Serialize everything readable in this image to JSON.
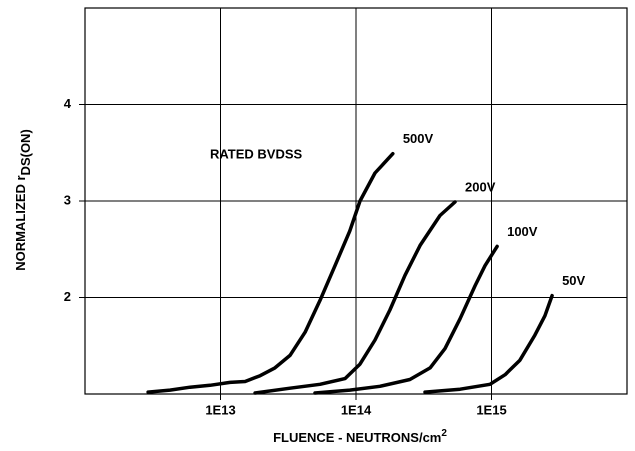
{
  "chart_data": {
    "type": "line",
    "x_label": [
      "FLUENCE - NEUTRONS/cm",
      "2"
    ],
    "y_label": [
      "NORMALIZED r",
      "DS(ON)"
    ],
    "annotation": "RATED BVDSS",
    "xscale": "log",
    "xlim": [
      1000000000000.0,
      1e+16
    ],
    "xticks": [
      {
        "value": 10000000000000.0,
        "label": "1E13"
      },
      {
        "value": 100000000000000.0,
        "label": "1E14"
      },
      {
        "value": 1000000000000000.0,
        "label": "1E15"
      }
    ],
    "ylim": [
      1,
      5
    ],
    "yticks": [
      2,
      3,
      4
    ],
    "grid": true,
    "series": [
      {
        "name": "500V",
        "color": "#000000",
        "x": [
          2920000000000.0,
          4240000000000.0,
          5960000000000.0,
          8370000000000.0,
          11750000000000.0,
          15200000000000.0,
          19600000000000.0,
          25200000000000.0,
          32600000000000.0,
          42100000000000.0,
          54200000000000.0,
          70000000000000.0,
          90000000000000.0,
          107000000000000.0,
          138000000000000.0,
          187000000000000.0
        ],
        "values": [
          1.02,
          1.04,
          1.07,
          1.09,
          1.12,
          1.13,
          1.19,
          1.27,
          1.4,
          1.64,
          1.97,
          2.33,
          2.69,
          3.0,
          3.29,
          3.49
        ]
      },
      {
        "name": "200V",
        "color": "#000000",
        "x": [
          18000000000000.0,
          32600000000000.0,
          54200000000000.0,
          83000000000000.0,
          107000000000000.0,
          138000000000000.0,
          178000000000000.0,
          230000000000000.0,
          297000000000000.0,
          417000000000000.0,
          538000000000000.0
        ],
        "values": [
          1.01,
          1.06,
          1.1,
          1.16,
          1.31,
          1.56,
          1.87,
          2.23,
          2.54,
          2.85,
          2.99
        ]
      },
      {
        "name": "100V",
        "color": "#000000",
        "x": [
          49800000000000.0,
          90000000000000.0,
          150000000000000.0,
          250000000000000.0,
          352000000000000.0,
          454000000000000.0,
          586000000000000.0,
          755000000000000.0,
          896000000000000.0,
          1100000000000000.0
        ],
        "values": [
          1.01,
          1.04,
          1.08,
          1.15,
          1.27,
          1.47,
          1.78,
          2.12,
          2.33,
          2.53
        ]
      },
      {
        "name": "50V",
        "color": "#000000",
        "x": [
          323000000000000.0,
          586000000000000.0,
          975000000000000.0,
          1260000000000000.0,
          1620000000000000.0,
          2090000000000000.0,
          2480000000000000.0,
          2800000000000000.0
        ],
        "values": [
          1.02,
          1.05,
          1.1,
          1.2,
          1.35,
          1.61,
          1.81,
          2.02
        ]
      }
    ]
  }
}
